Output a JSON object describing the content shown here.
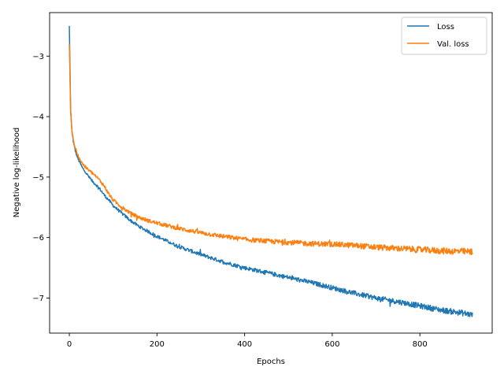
{
  "chart_data": {
    "type": "line",
    "title": "",
    "xlabel": "Epochs",
    "ylabel": "Negative log-likelihood",
    "xlim": [
      -45,
      965
    ],
    "ylim": [
      -7.58,
      -2.28
    ],
    "xticks": [
      0,
      200,
      400,
      600,
      800
    ],
    "yticks": [
      -7,
      -6,
      -5,
      -4,
      -3
    ],
    "grid": false,
    "legend_position": "top-right",
    "series": [
      {
        "name": "Loss",
        "color": "#1f77b4",
        "x": [
          0,
          3,
          6,
          10,
          15,
          20,
          30,
          40,
          50,
          60,
          70,
          80,
          90,
          100,
          120,
          140,
          160,
          180,
          200,
          250,
          300,
          350,
          400,
          450,
          500,
          550,
          600,
          650,
          700,
          750,
          800,
          850,
          900,
          920
        ],
        "y": [
          -2.5,
          -3.9,
          -4.25,
          -4.45,
          -4.6,
          -4.7,
          -4.85,
          -4.95,
          -5.05,
          -5.12,
          -5.2,
          -5.3,
          -5.38,
          -5.47,
          -5.6,
          -5.72,
          -5.82,
          -5.9,
          -5.98,
          -6.15,
          -6.28,
          -6.4,
          -6.5,
          -6.58,
          -6.66,
          -6.74,
          -6.83,
          -6.92,
          -7.0,
          -7.06,
          -7.13,
          -7.2,
          -7.25,
          -7.28
        ],
        "noise": 0.035
      },
      {
        "name": "Val. loss",
        "color": "#ff7f0e",
        "x": [
          0,
          3,
          6,
          10,
          15,
          20,
          30,
          40,
          50,
          60,
          70,
          80,
          90,
          100,
          120,
          140,
          160,
          180,
          200,
          250,
          300,
          350,
          400,
          450,
          500,
          550,
          600,
          650,
          700,
          750,
          800,
          850,
          900,
          920
        ],
        "y": [
          -2.8,
          -3.9,
          -4.25,
          -4.42,
          -4.55,
          -4.65,
          -4.78,
          -4.86,
          -4.92,
          -4.98,
          -5.06,
          -5.15,
          -5.28,
          -5.38,
          -5.5,
          -5.6,
          -5.67,
          -5.72,
          -5.76,
          -5.85,
          -5.92,
          -5.98,
          -6.03,
          -6.06,
          -6.08,
          -6.1,
          -6.11,
          -6.13,
          -6.16,
          -6.18,
          -6.2,
          -6.22,
          -6.23,
          -6.24
        ],
        "noise": 0.04
      }
    ]
  }
}
